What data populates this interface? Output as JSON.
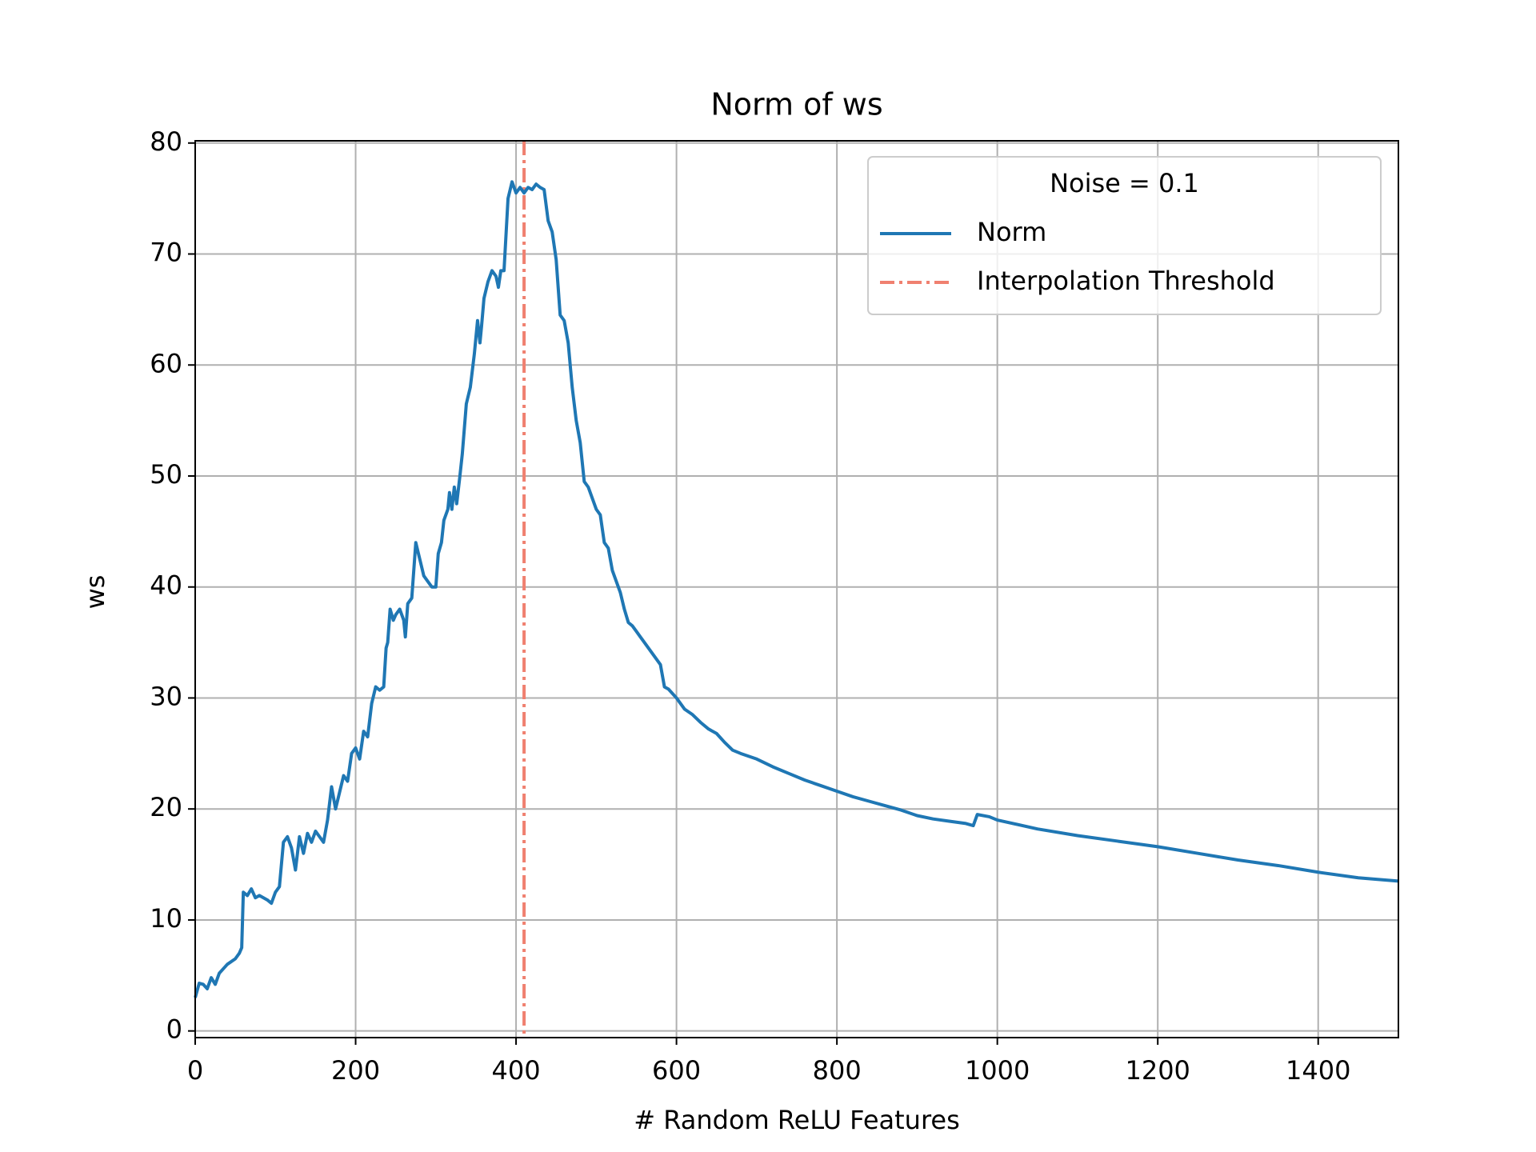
{
  "chart_data": {
    "type": "line",
    "title": "Norm of ws",
    "x_label": "# Random ReLU Features",
    "y_label": "ws",
    "xlim": [
      0,
      1500
    ],
    "ylim": [
      -0.6,
      80.2
    ],
    "xticks": [
      0,
      200,
      400,
      600,
      800,
      1000,
      1200,
      1400
    ],
    "yticks": [
      0,
      10,
      20,
      30,
      40,
      50,
      60,
      70,
      80
    ],
    "grid": true,
    "legend_position": "upper right",
    "legend_title": "Noise = 0.1",
    "x": [
      0,
      5,
      10,
      15,
      20,
      25,
      30,
      40,
      50,
      55,
      58,
      60,
      65,
      70,
      75,
      80,
      90,
      95,
      100,
      105,
      110,
      115,
      120,
      125,
      130,
      135,
      140,
      145,
      150,
      155,
      160,
      165,
      170,
      175,
      180,
      185,
      190,
      195,
      200,
      205,
      210,
      215,
      220,
      225,
      230,
      235,
      238,
      240,
      243,
      247,
      250,
      255,
      260,
      262,
      265,
      270,
      275,
      280,
      285,
      290,
      295,
      300,
      303,
      307,
      310,
      315,
      317,
      320,
      323,
      326,
      330,
      333,
      338,
      343,
      348,
      352,
      355,
      357,
      360,
      365,
      370,
      375,
      378,
      381,
      385,
      390,
      395,
      400,
      405,
      410,
      415,
      420,
      425,
      430,
      435,
      440,
      445,
      450,
      455,
      460,
      465,
      470,
      475,
      480,
      485,
      490,
      495,
      500,
      505,
      510,
      515,
      520,
      525,
      530,
      535,
      540,
      545,
      550,
      555,
      560,
      570,
      580,
      585,
      590,
      600,
      610,
      620,
      630,
      640,
      650,
      660,
      670,
      680,
      700,
      720,
      740,
      760,
      780,
      800,
      820,
      840,
      860,
      880,
      900,
      920,
      940,
      960,
      970,
      975,
      990,
      1000,
      1050,
      1100,
      1150,
      1200,
      1250,
      1300,
      1350,
      1400,
      1450,
      1500
    ],
    "series": [
      {
        "name": "Norm",
        "color": "#1f77b4",
        "values": [
          3,
          4.3,
          4.2,
          3.8,
          4.8,
          4.2,
          5.2,
          6,
          6.5,
          7,
          7.5,
          12.5,
          12.2,
          12.8,
          12,
          12.2,
          11.8,
          11.5,
          12.5,
          13,
          17,
          17.5,
          16.5,
          14.5,
          17.5,
          16,
          17.8,
          17,
          18,
          17.5,
          17,
          19,
          22,
          20,
          21.5,
          23,
          22.5,
          25,
          25.5,
          24.5,
          27,
          26.5,
          29.5,
          31,
          30.7,
          31,
          34.5,
          35,
          38,
          37,
          37.5,
          38,
          37,
          35.5,
          38.5,
          39,
          44,
          42.5,
          41,
          40.5,
          40,
          40,
          43,
          44,
          46,
          47,
          48.5,
          47,
          49,
          47.5,
          50,
          52,
          56.5,
          58,
          61,
          64,
          62,
          63.5,
          66,
          67.5,
          68.5,
          68,
          67,
          68.5,
          68.5,
          75,
          76.5,
          75.5,
          76,
          75.5,
          76,
          75.8,
          76.3,
          76,
          75.8,
          73,
          72,
          69.5,
          64.5,
          64,
          62,
          58,
          55,
          53,
          49.5,
          49,
          48,
          47,
          46.5,
          44,
          43.5,
          41.5,
          40.5,
          39.5,
          38,
          36.8,
          36.5,
          36,
          35.5,
          35,
          34,
          33,
          31,
          30.8,
          30,
          29,
          28.5,
          27.8,
          27.2,
          26.8,
          26,
          25.3,
          25,
          24.5,
          23.8,
          23.2,
          22.6,
          22.1,
          21.6,
          21.1,
          20.7,
          20.3,
          19.9,
          19.4,
          19.1,
          18.9,
          18.7,
          18.5,
          19.5,
          19.3,
          19,
          18.2,
          17.6,
          17.1,
          16.6,
          16,
          15.4,
          14.9,
          14.3,
          13.8,
          13.5
        ]
      }
    ],
    "threshold": {
      "name": "Interpolation Threshold",
      "x": 410,
      "color": "#f08070"
    }
  }
}
